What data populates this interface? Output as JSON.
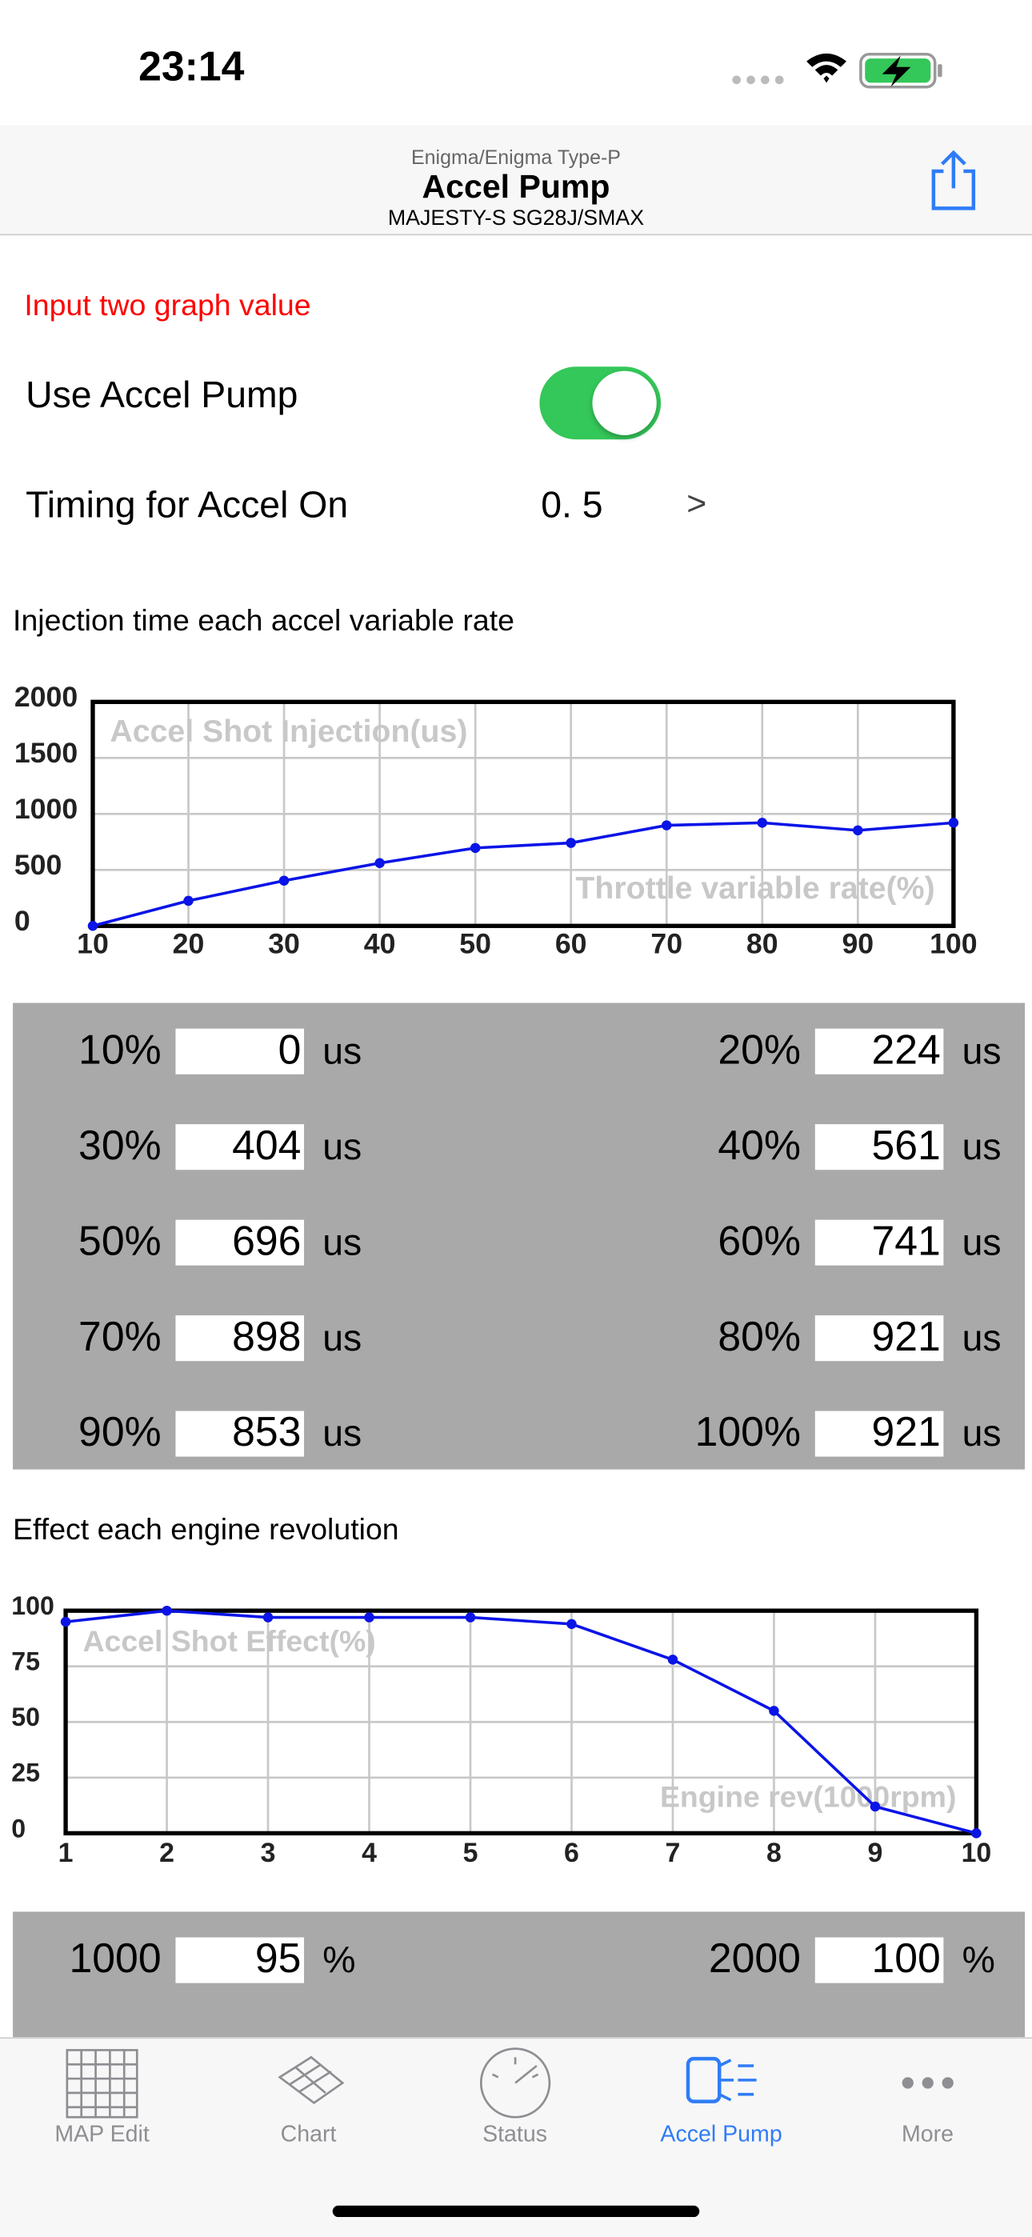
{
  "status_bar": {
    "time": "23:14"
  },
  "header": {
    "subtitle": "Enigma/Enigma Type-P",
    "title": "Accel Pump",
    "model": "MAJESTY-S SG28J/SMAX"
  },
  "form": {
    "notice": "Input two graph value",
    "use_accel_pump": "Use Accel Pump",
    "timing_label": "Timing for Accel On",
    "timing_value": "0. 5",
    "timing_arrow": ">"
  },
  "sections": [
    "Injection time each accel variable rate",
    "Effect each engine revolution"
  ],
  "chart_data": [
    {
      "type": "line",
      "x": [
        10,
        20,
        30,
        40,
        50,
        60,
        70,
        80,
        90,
        100
      ],
      "values": [
        0,
        224,
        404,
        561,
        696,
        741,
        898,
        921,
        853,
        921
      ],
      "xlim": [
        10,
        100
      ],
      "ylim": [
        0,
        2000
      ],
      "xticks": [
        10,
        20,
        30,
        40,
        50,
        60,
        70,
        80,
        90,
        100
      ],
      "yticks": [
        0,
        500,
        1000,
        1500,
        2000
      ],
      "grid": true,
      "color": "#0a14e6",
      "y_label": "Accel Shot Injection(us)",
      "x_label": "Throttle variable rate(%)"
    },
    {
      "type": "line",
      "x": [
        1,
        2,
        3,
        4,
        5,
        6,
        7,
        8,
        9,
        10
      ],
      "values": [
        95,
        100,
        97,
        97,
        97,
        94,
        78,
        55,
        12,
        0
      ],
      "xlim": [
        1,
        10
      ],
      "ylim": [
        0,
        100
      ],
      "xticks": [
        1,
        2,
        3,
        4,
        5,
        6,
        7,
        8,
        9,
        10
      ],
      "yticks": [
        0,
        25,
        50,
        75,
        100
      ],
      "grid": true,
      "color": "#0a14e6",
      "y_label": "Accel Shot Effect(%)",
      "x_label": "Engine rev(1000rpm)"
    }
  ],
  "tables": [
    {
      "unit": "us",
      "labels": [
        "10%",
        "20%",
        "30%",
        "40%",
        "50%",
        "60%",
        "70%",
        "80%",
        "90%",
        "100%"
      ]
    },
    {
      "unit": "%",
      "labels": [
        "1000",
        "2000"
      ]
    }
  ],
  "tab_bar": {
    "tabs": [
      "MAP Edit",
      "Chart",
      "Status",
      "Accel Pump",
      "More"
    ],
    "selected": 3
  }
}
